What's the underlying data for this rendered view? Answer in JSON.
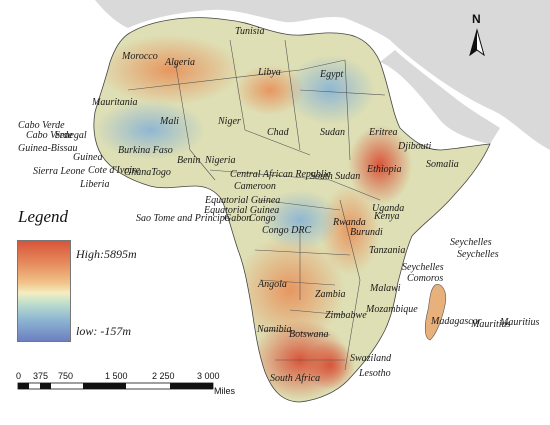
{
  "map": {
    "countries": [
      "Tunisia",
      "Morocco",
      "Algeria",
      "Libya",
      "Egypt",
      "Mauritania",
      "Mali",
      "Niger",
      "Chad",
      "Sudan",
      "Cabo Verde",
      "Cabo Verde",
      "Senegal",
      "Guinea-Bissau",
      "Guinea",
      "Burkina Faso",
      "Benin",
      "Nigeria",
      "Sierra Leone",
      "Cote d'Ivoire",
      "GhanaTogo",
      "Liberia",
      "Central African Republic",
      "South Sudan",
      "Eritrea",
      "Djibouti",
      "Somalia",
      "Ethiopia",
      "Cameroon",
      "Equatorial Guinea",
      "Equatorial Guinea",
      "Sao Tome and Principe",
      "Gabon",
      "Congo",
      "Uganda",
      "Kenya",
      "Rwanda",
      "Burundi",
      "Congo DRC",
      "Tanzania",
      "Seychelles",
      "Seychelles",
      "Seychelles",
      "Comoros",
      "Angola",
      "Zambia",
      "Malawi",
      "Mozambique",
      "Zimbabwe",
      "Madagascar",
      "Mauritius",
      "Mauritius",
      "Namibia",
      "Botswana",
      "Swaziland",
      "Lesotho",
      "South Africa"
    ]
  },
  "legend": {
    "title": "Legend",
    "high": "High:5895m",
    "low": "low: -157m",
    "colors": [
      "#d8553a",
      "#e58a5c",
      "#f1c48a",
      "#f4edc2",
      "#bfe0cc",
      "#8fb7d2",
      "#6c7fc0"
    ]
  },
  "scale_bar": {
    "ticks": [
      "0",
      "375",
      "750",
      "1 500",
      "2 250",
      "3 000"
    ],
    "unit": "Miles"
  },
  "north_arrow": {
    "label": "N"
  },
  "colors": {
    "land_other": "#d9d9d9",
    "sea": "#ffffff",
    "border": "#555555"
  }
}
